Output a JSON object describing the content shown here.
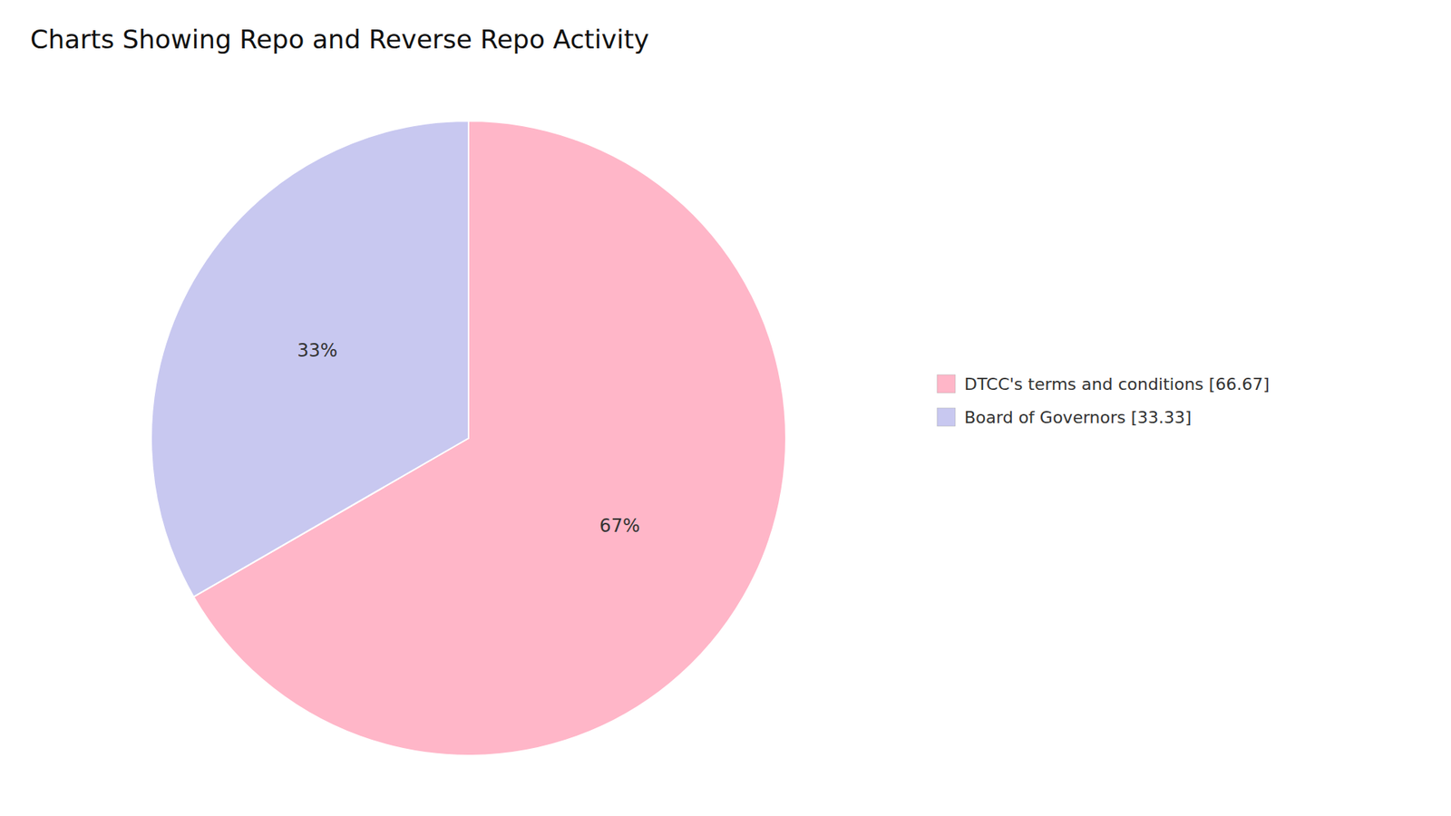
{
  "chart_data": {
    "type": "pie",
    "title": "Charts Showing Repo and Reverse Repo Activity",
    "categories": [
      "DTCC's terms and conditions [66.67]",
      "Board of Governors [33.33]"
    ],
    "values": [
      66.67,
      33.33
    ],
    "value_labels": [
      "67%",
      "33%"
    ],
    "data_labels": true,
    "colors": [
      "#FFB6C8",
      "#C8C8F0"
    ],
    "legend": "right"
  }
}
